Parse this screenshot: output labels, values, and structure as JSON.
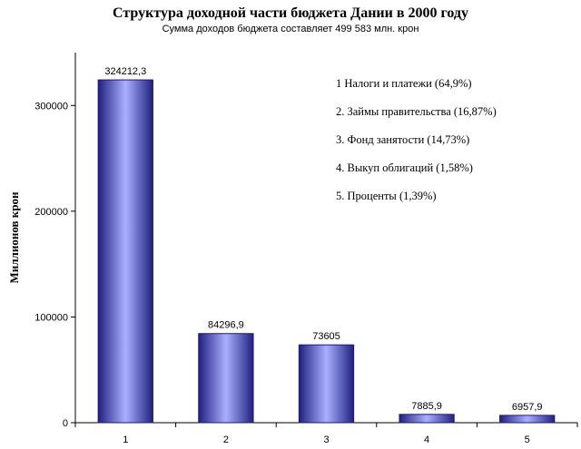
{
  "chart_data": {
    "type": "bar",
    "title": "Структура доходной части бюджета Дании в 2000 году",
    "subtitle": "Сумма доходов бюджета составляет 499 583 млн. крон",
    "xlabel": "",
    "ylabel": "Миллионов крон",
    "categories": [
      "1",
      "2",
      "3",
      "4",
      "5"
    ],
    "values": [
      324212.3,
      84296.9,
      73605,
      7885.9,
      6957.9
    ],
    "data_labels": [
      "324212,3",
      "84296,9",
      "73605",
      "7885,9",
      "6957,9"
    ],
    "ylim": [
      0,
      350000
    ],
    "yticks": [
      0,
      100000,
      200000,
      300000
    ],
    "ytick_labels": [
      "0",
      "100000",
      "200000",
      "300000"
    ],
    "grid": false,
    "legend_placement": "top-right",
    "annotations": [
      "1 Налоги и платежи (64,9%)",
      "2. Займы правительства (16,87%)",
      "3. Фонд занятости (14,73%)",
      "4. Выкуп облигаций (1,58%)",
      "5. Проценты (1,39%)"
    ],
    "colors": {
      "bar_edge": "#1a1a7a",
      "bar_center": "#aab0ff",
      "bar_dark": "#20207a"
    }
  }
}
